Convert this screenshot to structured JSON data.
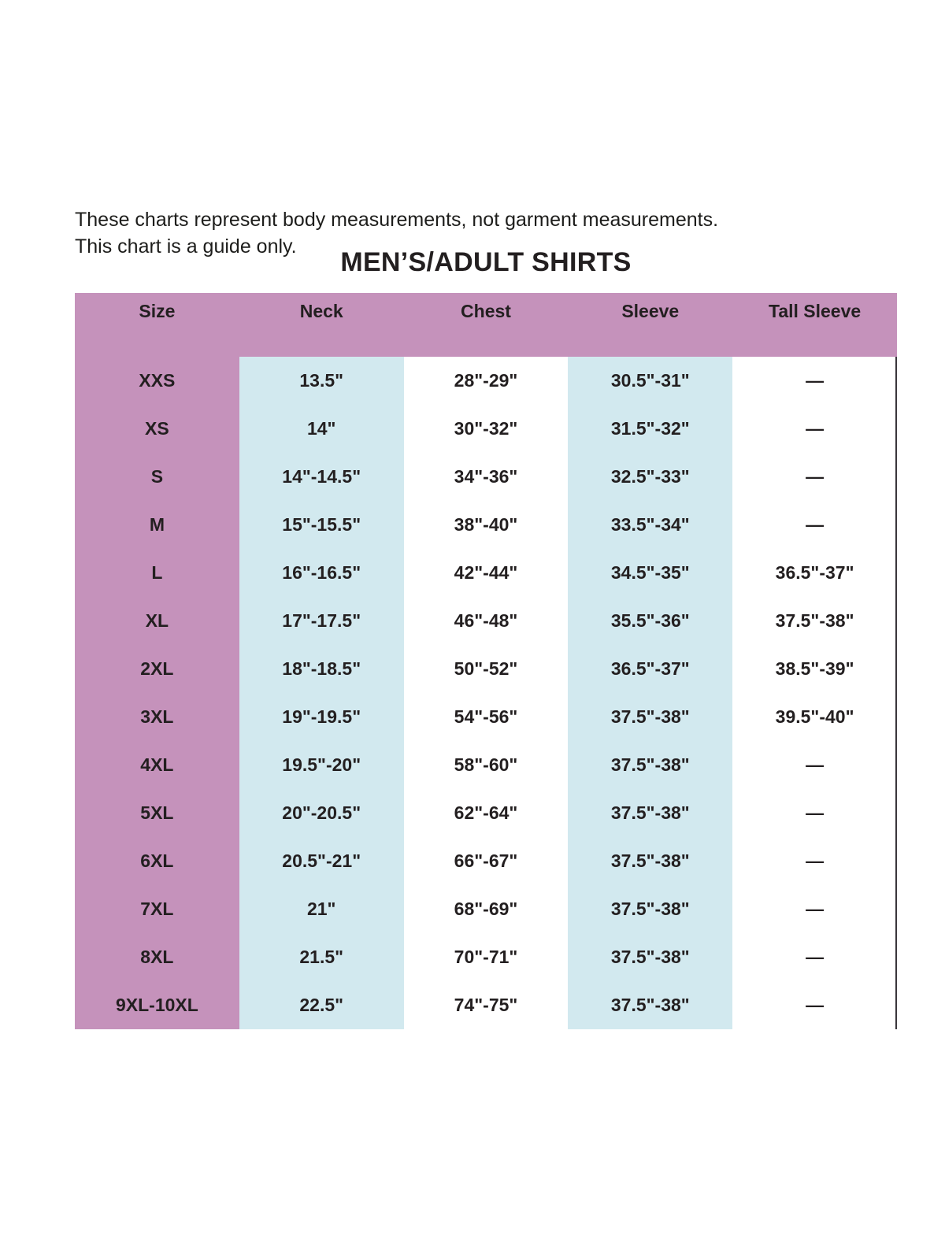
{
  "note": {
    "line1": "These charts represent body measurements, not garment measurements.",
    "line2": "This chart is a guide only."
  },
  "title": "MEN’S/ADULT SHIRTS",
  "table": {
    "columns": [
      "Size",
      "Neck",
      "Chest",
      "Sleeve",
      "Tall Sleeve"
    ],
    "rows": [
      {
        "size": "XXS",
        "neck": "13.5\"",
        "chest": "28\"-29\"",
        "sleeve": "30.5\"-31\"",
        "tall_sleeve": "—"
      },
      {
        "size": "XS",
        "neck": "14\"",
        "chest": "30\"-32\"",
        "sleeve": "31.5\"-32\"",
        "tall_sleeve": "—"
      },
      {
        "size": "S",
        "neck": "14\"-14.5\"",
        "chest": "34\"-36\"",
        "sleeve": "32.5\"-33\"",
        "tall_sleeve": "—"
      },
      {
        "size": "M",
        "neck": "15\"-15.5\"",
        "chest": "38\"-40\"",
        "sleeve": "33.5\"-34\"",
        "tall_sleeve": "—"
      },
      {
        "size": "L",
        "neck": "16\"-16.5\"",
        "chest": "42\"-44\"",
        "sleeve": "34.5\"-35\"",
        "tall_sleeve": "36.5\"-37\""
      },
      {
        "size": "XL",
        "neck": "17\"-17.5\"",
        "chest": "46\"-48\"",
        "sleeve": "35.5\"-36\"",
        "tall_sleeve": "37.5\"-38\""
      },
      {
        "size": "2XL",
        "neck": "18\"-18.5\"",
        "chest": "50\"-52\"",
        "sleeve": "36.5\"-37\"",
        "tall_sleeve": "38.5\"-39\""
      },
      {
        "size": "3XL",
        "neck": "19\"-19.5\"",
        "chest": "54\"-56\"",
        "sleeve": "37.5\"-38\"",
        "tall_sleeve": "39.5\"-40\""
      },
      {
        "size": "4XL",
        "neck": "19.5\"-20\"",
        "chest": "58\"-60\"",
        "sleeve": "37.5\"-38\"",
        "tall_sleeve": "—"
      },
      {
        "size": "5XL",
        "neck": "20\"-20.5\"",
        "chest": "62\"-64\"",
        "sleeve": "37.5\"-38\"",
        "tall_sleeve": "—"
      },
      {
        "size": "6XL",
        "neck": "20.5\"-21\"",
        "chest": "66\"-67\"",
        "sleeve": "37.5\"-38\"",
        "tall_sleeve": "—"
      },
      {
        "size": "7XL",
        "neck": "21\"",
        "chest": "68\"-69\"",
        "sleeve": "37.5\"-38\"",
        "tall_sleeve": "—"
      },
      {
        "size": "8XL",
        "neck": "21.5\"",
        "chest": "70\"-71\"",
        "sleeve": "37.5\"-38\"",
        "tall_sleeve": "—"
      },
      {
        "size": "9XL-10XL",
        "neck": "22.5\"",
        "chest": "74\"-75\"",
        "sleeve": "37.5\"-38\"",
        "tall_sleeve": "—"
      }
    ]
  },
  "colors": {
    "header_pink": "#c592bb",
    "column_blue": "#d2e9ef",
    "text_dark": "#231f20",
    "border_dark": "#3a363b"
  },
  "chart_data": {
    "type": "table",
    "title": "MEN’S/ADULT SHIRTS",
    "columns": [
      "Size",
      "Neck",
      "Chest",
      "Sleeve",
      "Tall Sleeve"
    ],
    "rows": [
      [
        "XXS",
        "13.5\"",
        "28\"-29\"",
        "30.5\"-31\"",
        "—"
      ],
      [
        "XS",
        "14\"",
        "30\"-32\"",
        "31.5\"-32\"",
        "—"
      ],
      [
        "S",
        "14\"-14.5\"",
        "34\"-36\"",
        "32.5\"-33\"",
        "—"
      ],
      [
        "M",
        "15\"-15.5\"",
        "38\"-40\"",
        "33.5\"-34\"",
        "—"
      ],
      [
        "L",
        "16\"-16.5\"",
        "42\"-44\"",
        "34.5\"-35\"",
        "36.5\"-37\""
      ],
      [
        "XL",
        "17\"-17.5\"",
        "46\"-48\"",
        "35.5\"-36\"",
        "37.5\"-38\""
      ],
      [
        "2XL",
        "18\"-18.5\"",
        "50\"-52\"",
        "36.5\"-37\"",
        "38.5\"-39\""
      ],
      [
        "3XL",
        "19\"-19.5\"",
        "54\"-56\"",
        "37.5\"-38\"",
        "39.5\"-40\""
      ],
      [
        "4XL",
        "19.5\"-20\"",
        "58\"-60\"",
        "37.5\"-38\"",
        "—"
      ],
      [
        "5XL",
        "20\"-20.5\"",
        "62\"-64\"",
        "37.5\"-38\"",
        "—"
      ],
      [
        "6XL",
        "20.5\"-21\"",
        "66\"-67\"",
        "37.5\"-38\"",
        "—"
      ],
      [
        "7XL",
        "21\"",
        "68\"-69\"",
        "37.5\"-38\"",
        "—"
      ],
      [
        "8XL",
        "21.5\"",
        "70\"-71\"",
        "37.5\"-38\"",
        "—"
      ],
      [
        "9XL-10XL",
        "22.5\"",
        "74\"-75\"",
        "37.5\"-38\"",
        "—"
      ]
    ]
  }
}
